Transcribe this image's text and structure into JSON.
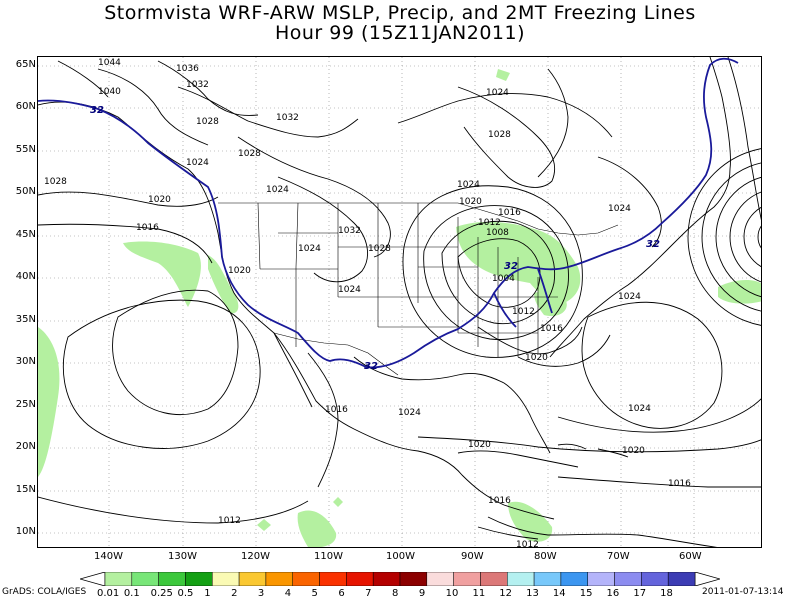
{
  "header": {
    "title_line1": "Stormvista WRF-ARW MSLP, Precip, and 2MT Freezing Lines",
    "title_line2": "Hour 99 (15Z11JAN2011)"
  },
  "map": {
    "lat_labels": [
      "65N",
      "60N",
      "55N",
      "50N",
      "45N",
      "40N",
      "35N",
      "30N",
      "25N",
      "20N",
      "15N",
      "10N"
    ],
    "lon_labels": [
      "140W",
      "130W",
      "120W",
      "110W",
      "100W",
      "90W",
      "80W",
      "70W",
      "60W"
    ],
    "isobar_labels": [
      "1044",
      "1036",
      "1032",
      "1040",
      "1028",
      "1032",
      "1028",
      "1024",
      "1028",
      "1020",
      "1016",
      "1024",
      "1032",
      "1028",
      "1024",
      "1024",
      "1020",
      "1016",
      "1012",
      "1008",
      "1004",
      "1012",
      "1016",
      "1020",
      "1024",
      "1020",
      "1016",
      "1016",
      "1012",
      "1024",
      "1024",
      "1020",
      "1024",
      "1020",
      "1016",
      "1012",
      "1024",
      "1024",
      "1028"
    ],
    "freeze_line_label": "32",
    "precip_color": "#b4f0a0",
    "isobar_color": "#000000",
    "freeze_line_color": "#1a1a9a",
    "coast_color": "#000000"
  },
  "colorbar": {
    "labels": [
      "0.01",
      "0.1",
      "0.25",
      "0.5",
      "1",
      "2",
      "3",
      "4",
      "5",
      "6",
      "7",
      "8",
      "9",
      "10",
      "11",
      "12",
      "13",
      "14",
      "15",
      "16",
      "17",
      "18"
    ],
    "colors": [
      "#b4f0a0",
      "#78e678",
      "#3cc83c",
      "#14a014",
      "#fafab4",
      "#fac832",
      "#fa9600",
      "#fa6400",
      "#fa3200",
      "#e61400",
      "#b40000",
      "#8c0000",
      "#fadcdc",
      "#f0a0a0",
      "#dc7878",
      "#b4f0f0",
      "#78c8fa",
      "#3c96f0",
      "#b4b4fa",
      "#8c8cf0",
      "#6464dc",
      "#3c3cb4"
    ]
  },
  "footer": {
    "left": "GrADS: COLA/IGES",
    "right": "2011-01-07-13:14"
  }
}
